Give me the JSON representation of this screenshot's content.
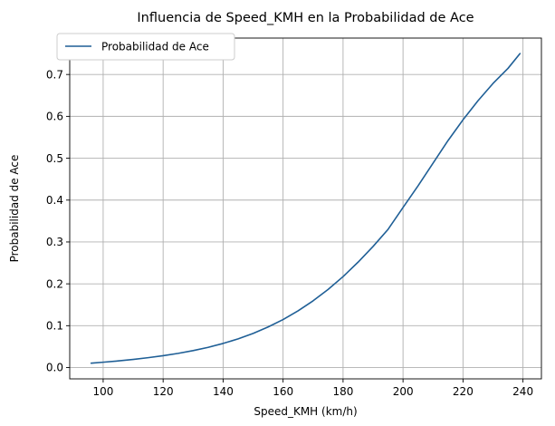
{
  "chart_data": {
    "type": "line",
    "title": "Influencia de Speed_KMH en la Probabilidad de Ace",
    "xlabel": "Speed_KMH (km/h)",
    "ylabel": "Probabilidad de Ace",
    "xlim": [
      88.85,
      246.15
    ],
    "ylim": [
      -0.027,
      0.787
    ],
    "xticks": [
      100,
      120,
      140,
      160,
      180,
      200,
      220,
      240
    ],
    "yticks": [
      0.0,
      0.1,
      0.2,
      0.3,
      0.4,
      0.5,
      0.6,
      0.7
    ],
    "xtick_labels": [
      "100",
      "120",
      "140",
      "160",
      "180",
      "200",
      "220",
      "240"
    ],
    "ytick_labels": [
      "0.0",
      "0.1",
      "0.2",
      "0.3",
      "0.4",
      "0.5",
      "0.6",
      "0.7"
    ],
    "grid": true,
    "legend": {
      "position": "upper-left",
      "entries": [
        "Probabilidad de Ace"
      ]
    },
    "series": [
      {
        "name": "Probabilidad de Ace",
        "color": "#1f5f96",
        "x": [
          96,
          100,
          105,
          110,
          115,
          120,
          125,
          130,
          135,
          140,
          145,
          150,
          155,
          160,
          165,
          170,
          175,
          180,
          185,
          190,
          195,
          200,
          205,
          210,
          215,
          220,
          225,
          230,
          235,
          239
        ],
        "y": [
          0.0105,
          0.0128,
          0.0158,
          0.0195,
          0.0236,
          0.0283,
          0.0339,
          0.0405,
          0.0483,
          0.0576,
          0.0685,
          0.0816,
          0.0969,
          0.1147,
          0.1355,
          0.1594,
          0.1866,
          0.2172,
          0.2517,
          0.2892,
          0.33,
          0.3824,
          0.434,
          0.4881,
          0.5421,
          0.5918,
          0.6373,
          0.6785,
          0.7146,
          0.75
        ]
      }
    ]
  }
}
